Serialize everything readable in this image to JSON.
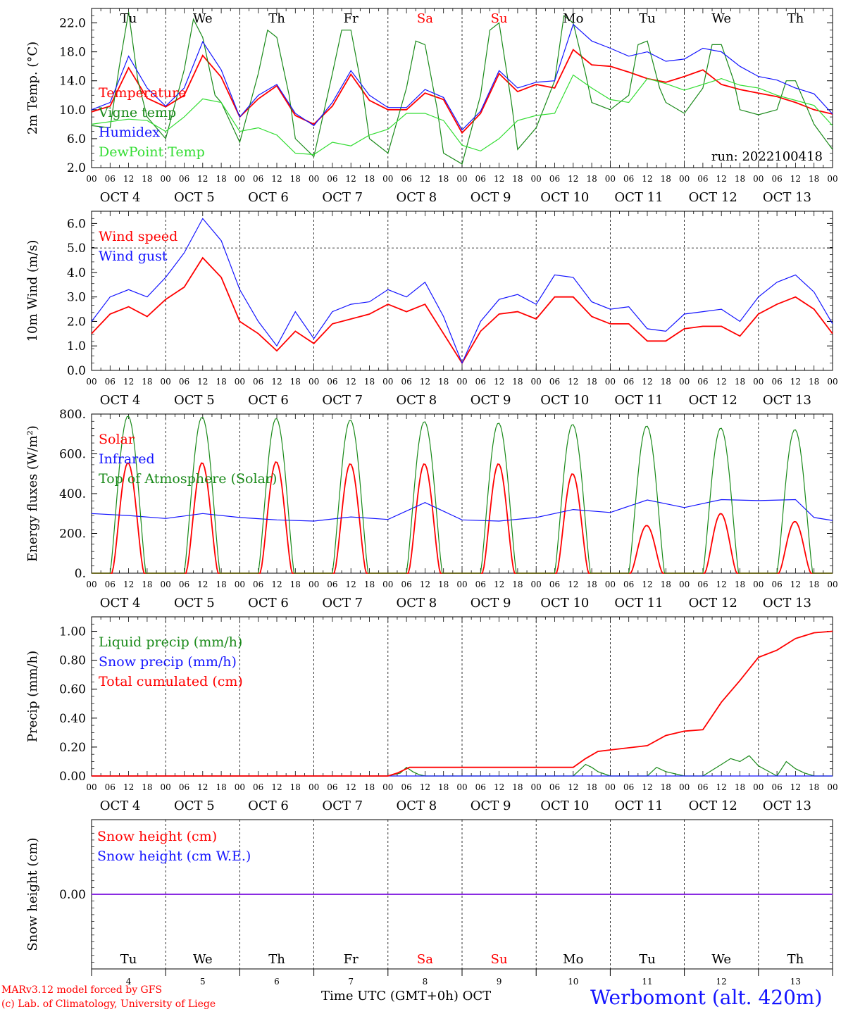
{
  "colors": {
    "red": "#ff0000",
    "green": "#1a8a1a",
    "blue": "#1414ff",
    "lightgreen": "#33dd33",
    "purple": "#8a2be2"
  },
  "days": [
    "Tu",
    "We",
    "Th",
    "Fr",
    "Sa",
    "Su",
    "Mo",
    "Tu",
    "We",
    "Th"
  ],
  "weekend_days": [
    "Sa",
    "Su"
  ],
  "day_numbers": [
    "4",
    "5",
    "6",
    "7",
    "8",
    "9",
    "10",
    "11",
    "12",
    "13"
  ],
  "date_labels": [
    "OCT  4",
    "OCT  5",
    "OCT  6",
    "OCT  7",
    "OCT  8",
    "OCT  9",
    "OCT 10",
    "OCT 11",
    "OCT 12",
    "OCT 13"
  ],
  "hour_ticks": [
    "00",
    "06",
    "12",
    "18"
  ],
  "footer": {
    "model": "MARv3.12 model forced by GFS",
    "lab": "(c) Lab. of Climatology, University of Liege",
    "axis_label": "Time UTC (GMT+0h) OCT",
    "station": "Werbomont (alt. 420m)"
  },
  "chart_data": [
    {
      "type": "line",
      "id": "temp",
      "ylabel": "2m Temp. (°C)",
      "ylim": [
        2,
        24
      ],
      "yticks": [
        "22.0",
        "18.0",
        "14.0",
        "10.0",
        "6.0",
        "2.0"
      ],
      "annotation": "run: 2022100418",
      "x_unit": "hours since Oct 4 00 UTC",
      "x_range": [
        0,
        240
      ],
      "series": [
        {
          "name": "Temperature",
          "color": "red",
          "x": [
            0,
            6,
            12,
            18,
            24,
            30,
            36,
            42,
            48,
            54,
            60,
            66,
            72,
            78,
            84,
            90,
            96,
            102,
            108,
            114,
            120,
            126,
            132,
            138,
            144,
            150,
            156,
            162,
            168,
            174,
            180,
            186,
            192,
            198,
            204,
            210,
            216,
            222,
            228,
            234,
            240
          ],
          "values": [
            9.7,
            10.5,
            15.8,
            11.6,
            10.4,
            12,
            17.5,
            14.5,
            9.0,
            11.5,
            13.3,
            9.2,
            8.0,
            10.5,
            14.9,
            11.3,
            10.0,
            10.0,
            12.3,
            11.4,
            6.8,
            9.5,
            15.0,
            12.5,
            13.5,
            13.0,
            18.3,
            16.2,
            16.0,
            15.2,
            14.3,
            13.8,
            14.6,
            15.5,
            13.5,
            12.8,
            12.3,
            11.8,
            11.0,
            10.0,
            9.4
          ]
        },
        {
          "name": "Vigne temp",
          "color": "green",
          "x": [
            0,
            6,
            9,
            12,
            15,
            18,
            24,
            30,
            33,
            36,
            40,
            42,
            48,
            54,
            57,
            60,
            64,
            66,
            72,
            78,
            81,
            84,
            88,
            90,
            96,
            102,
            105,
            108,
            112,
            114,
            120,
            126,
            129,
            132,
            136,
            138,
            144,
            150,
            153,
            156,
            160,
            162,
            168,
            174,
            177,
            180,
            184,
            186,
            192,
            198,
            201,
            204,
            208,
            210,
            216,
            222,
            225,
            228,
            232,
            234,
            240
          ],
          "values": [
            7.8,
            7.5,
            16,
            23.5,
            14,
            9,
            6.0,
            15.5,
            22.5,
            20,
            12,
            11,
            5.5,
            15,
            21,
            20,
            12,
            6,
            3.5,
            15,
            21,
            21,
            12,
            6,
            4,
            13,
            19.5,
            19,
            10,
            4,
            2.5,
            12,
            21,
            22,
            11,
            4.5,
            7.5,
            14,
            23,
            22,
            15,
            11,
            10,
            12,
            19,
            19.5,
            13,
            11,
            9.5,
            13,
            19,
            19,
            14,
            10,
            9.3,
            10,
            14,
            14,
            10,
            8,
            4.5
          ]
        },
        {
          "name": "Humidex",
          "color": "blue",
          "x": [
            0,
            6,
            12,
            18,
            24,
            30,
            36,
            42,
            48,
            54,
            60,
            66,
            72,
            78,
            84,
            90,
            96,
            102,
            108,
            114,
            120,
            126,
            132,
            138,
            144,
            150,
            156,
            162,
            168,
            174,
            180,
            186,
            192,
            198,
            204,
            210,
            216,
            222,
            228,
            234,
            240
          ],
          "values": [
            10.0,
            11,
            17.4,
            13,
            10.5,
            13,
            19.4,
            15.5,
            9.0,
            12,
            13.5,
            9.5,
            7.8,
            11,
            15.4,
            12,
            10.3,
            10.3,
            12.8,
            11.7,
            7.2,
            9.8,
            15.4,
            13,
            13.8,
            14,
            21.8,
            19.5,
            18.5,
            17.4,
            18,
            16.7,
            17,
            18.5,
            18,
            16,
            14.6,
            14.1,
            13,
            12.2,
            9.4
          ]
        },
        {
          "name": "DewPoint Temp",
          "color": "lightgreen",
          "x": [
            0,
            12,
            18,
            24,
            30,
            36,
            42,
            48,
            54,
            60,
            66,
            72,
            78,
            84,
            90,
            96,
            102,
            108,
            114,
            120,
            126,
            132,
            138,
            144,
            150,
            156,
            162,
            168,
            174,
            180,
            186,
            192,
            198,
            204,
            210,
            216,
            222,
            228,
            234,
            240
          ],
          "values": [
            8,
            8.7,
            8.5,
            7.0,
            9,
            11.5,
            11,
            7.0,
            7.5,
            6.5,
            4.0,
            3.8,
            5.5,
            5,
            6.5,
            7.3,
            9.5,
            9.5,
            8.5,
            5.1,
            4.3,
            6.0,
            8.5,
            9.2,
            9.5,
            14.8,
            13,
            11.4,
            11,
            14.3,
            13.6,
            12.7,
            13.5,
            14.3,
            13.4,
            13,
            12,
            11.3,
            10.6,
            7.8
          ]
        }
      ]
    },
    {
      "type": "line",
      "id": "wind",
      "ylabel": "10m Wind (m/s)",
      "ylim": [
        0,
        6.5
      ],
      "yticks": [
        "6.0",
        "5.0",
        "4.0",
        "3.0",
        "2.0",
        "1.0",
        "0.0"
      ],
      "x_unit": "hours since Oct 4 00 UTC",
      "x_range": [
        0,
        240
      ],
      "series": [
        {
          "name": "Wind speed",
          "color": "red",
          "x": [
            0,
            6,
            12,
            18,
            24,
            30,
            36,
            42,
            48,
            54,
            60,
            66,
            72,
            78,
            84,
            90,
            96,
            102,
            108,
            114,
            120,
            126,
            132,
            138,
            144,
            150,
            156,
            162,
            168,
            174,
            180,
            186,
            192,
            198,
            204,
            210,
            216,
            222,
            228,
            234,
            240
          ],
          "values": [
            1.5,
            2.3,
            2.6,
            2.2,
            2.9,
            3.4,
            4.6,
            3.8,
            2.0,
            1.5,
            0.8,
            1.6,
            1.1,
            1.9,
            2.1,
            2.3,
            2.7,
            2.4,
            2.7,
            1.5,
            0.3,
            1.6,
            2.3,
            2.4,
            2.1,
            3.0,
            3.0,
            2.2,
            1.9,
            1.9,
            1.2,
            1.2,
            1.7,
            1.8,
            1.8,
            1.4,
            2.3,
            2.7,
            3.0,
            2.5,
            1.5
          ]
        },
        {
          "name": "Wind gust",
          "color": "blue",
          "x": [
            0,
            6,
            12,
            18,
            24,
            30,
            36,
            42,
            48,
            54,
            60,
            66,
            72,
            78,
            84,
            90,
            96,
            102,
            108,
            114,
            120,
            126,
            132,
            138,
            144,
            150,
            156,
            162,
            168,
            174,
            180,
            186,
            192,
            198,
            204,
            210,
            216,
            222,
            228,
            234,
            240
          ],
          "values": [
            2.0,
            3.0,
            3.3,
            3.0,
            3.8,
            4.8,
            6.2,
            5.3,
            3.3,
            2.0,
            1.0,
            2.4,
            1.3,
            2.4,
            2.7,
            2.8,
            3.3,
            3.0,
            3.6,
            2.2,
            0.3,
            2.0,
            2.9,
            3.1,
            2.7,
            3.9,
            3.8,
            2.8,
            2.5,
            2.6,
            1.7,
            1.6,
            2.3,
            2.4,
            2.5,
            2.0,
            3.0,
            3.6,
            3.9,
            3.2,
            1.9
          ]
        }
      ]
    },
    {
      "type": "line",
      "id": "energy",
      "ylabel": "Energy fluxes (W/m²)",
      "ylim": [
        0,
        800
      ],
      "yticks": [
        "800.",
        "600.",
        "400.",
        "200.",
        "0."
      ],
      "x_unit": "hours since Oct 4 00 UTC",
      "x_range": [
        0,
        240
      ],
      "series": [
        {
          "name": "Solar",
          "color": "red",
          "day_peaks": [
            555,
            555,
            560,
            550,
            550,
            550,
            500,
            240,
            300,
            260
          ]
        },
        {
          "name": "Infrared",
          "color": "blue",
          "x": [
            0,
            12,
            24,
            36,
            48,
            60,
            72,
            84,
            96,
            108,
            120,
            132,
            144,
            156,
            168,
            180,
            192,
            204,
            216,
            228,
            234,
            240
          ],
          "values": [
            300,
            290,
            275,
            300,
            280,
            268,
            262,
            283,
            270,
            355,
            268,
            262,
            280,
            320,
            305,
            368,
            330,
            370,
            365,
            370,
            280,
            265
          ]
        },
        {
          "name": "Top of Atmosphere (Solar)",
          "color": "green",
          "day_peaks": [
            790,
            785,
            778,
            770,
            762,
            755,
            748,
            740,
            730,
            722
          ]
        }
      ]
    },
    {
      "type": "line",
      "id": "precip",
      "ylabel": "Precip (mm/h)",
      "ylim": [
        0,
        1.1
      ],
      "yticks": [
        "1.00",
        "0.80",
        "0.60",
        "0.40",
        "0.20",
        "0.00"
      ],
      "x_unit": "hours since Oct 4 00 UTC",
      "x_range": [
        0,
        240
      ],
      "series": [
        {
          "name": "Liquid precip (mm/h)",
          "color": "green",
          "x": [
            0,
            96,
            98,
            100,
            102,
            104,
            106,
            108,
            156,
            158,
            160,
            162,
            164,
            168,
            180,
            183,
            186,
            192,
            198,
            204,
            207,
            210,
            213,
            216,
            222,
            225,
            228,
            231,
            234,
            240
          ],
          "values": [
            0,
            0,
            0.01,
            0.02,
            0.06,
            0.03,
            0.01,
            0,
            0,
            0.04,
            0.08,
            0.06,
            0.03,
            0,
            0,
            0.06,
            0.03,
            0,
            0,
            0.08,
            0.12,
            0.1,
            0.14,
            0.07,
            0,
            0.1,
            0.05,
            0.02,
            0,
            0
          ]
        },
        {
          "name": "Snow precip (mm/h)",
          "color": "blue",
          "x": [
            0,
            240
          ],
          "values": [
            0,
            0
          ]
        },
        {
          "name": "Total cumulated (cm)",
          "color": "red",
          "x": [
            0,
            96,
            99,
            103,
            108,
            156,
            160,
            164,
            168,
            180,
            186,
            192,
            198,
            204,
            210,
            216,
            222,
            228,
            234,
            240
          ],
          "values": [
            0,
            0,
            0.02,
            0.06,
            0.06,
            0.06,
            0.12,
            0.17,
            0.18,
            0.21,
            0.28,
            0.31,
            0.32,
            0.51,
            0.66,
            0.82,
            0.87,
            0.95,
            0.99,
            1.0
          ]
        }
      ]
    },
    {
      "type": "line",
      "id": "snow",
      "ylabel": "Snow height (cm)",
      "ylim": [
        -1,
        1
      ],
      "yticks": [
        "0.00"
      ],
      "x_unit": "hours since Oct 4 00 UTC",
      "x_range": [
        0,
        240
      ],
      "series": [
        {
          "name": "Snow height (cm)",
          "color": "red",
          "x": [
            0,
            240
          ],
          "values": [
            0,
            0
          ]
        },
        {
          "name": "Snow height (cm W.E.)",
          "color": "blue",
          "x": [
            0,
            240
          ],
          "values": [
            0,
            0
          ]
        }
      ]
    }
  ]
}
